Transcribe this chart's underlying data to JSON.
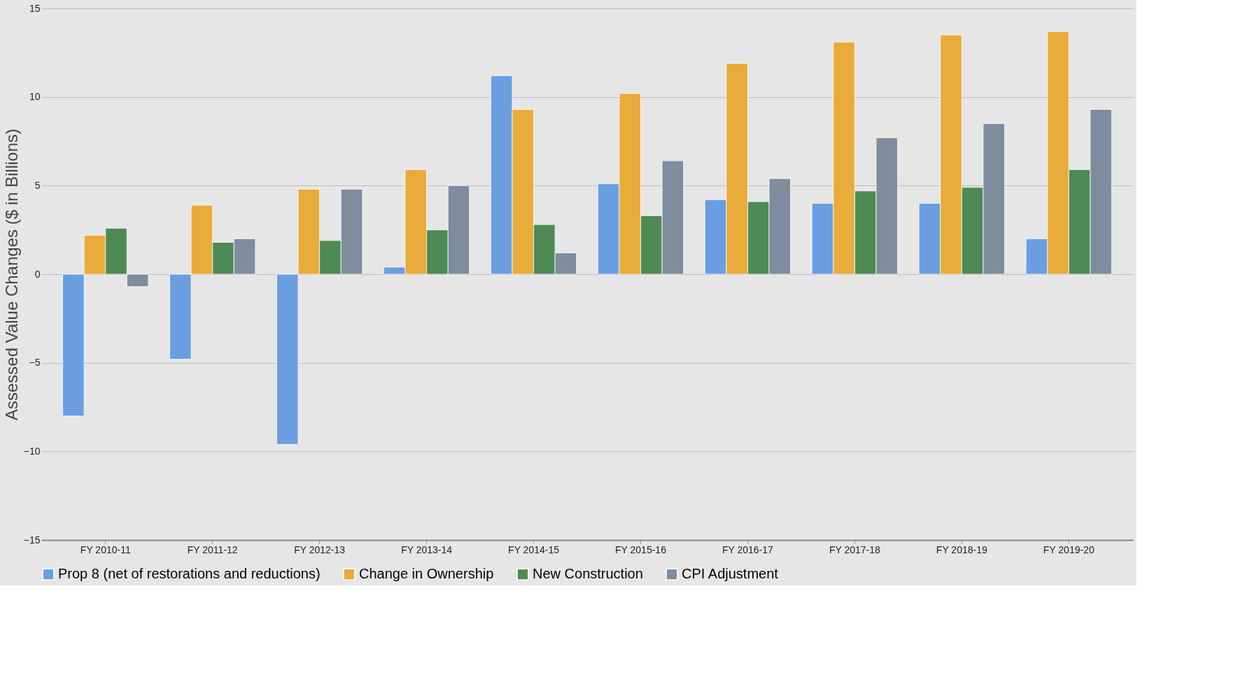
{
  "chart_data": {
    "type": "bar",
    "ylabel": "Assessed Value Changes ($ in Billions)",
    "categories": [
      "FY 2010-11",
      "FY 2011-12",
      "FY 2012-13",
      "FY 2013-14",
      "FY 2014-15",
      "FY 2015-16",
      "FY 2016-17",
      "FY 2017-18",
      "FY 2018-19",
      "FY 2019-20"
    ],
    "series": [
      {
        "name": "Prop 8 (net of restorations and reductions)",
        "color": "#6a9ee0",
        "values": [
          -8.0,
          -4.8,
          -9.6,
          0.4,
          11.2,
          5.1,
          4.2,
          4.0,
          4.0,
          2.0
        ]
      },
      {
        "name": "Change in Ownership",
        "color": "#e9ab3a",
        "values": [
          2.2,
          3.9,
          4.8,
          5.9,
          9.3,
          10.2,
          11.9,
          13.1,
          13.5,
          13.7
        ]
      },
      {
        "name": "New Construction",
        "color": "#4e8a55",
        "values": [
          2.6,
          1.8,
          1.9,
          2.5,
          2.8,
          3.3,
          4.1,
          4.7,
          4.9,
          5.9
        ]
      },
      {
        "name": "CPI Adjustment",
        "color": "#7d8d9e",
        "values": [
          -0.7,
          2.0,
          4.8,
          5.0,
          1.2,
          6.4,
          5.4,
          7.7,
          8.5,
          9.3
        ]
      }
    ],
    "ylim": [
      -15,
      15
    ],
    "yticks": [
      -15,
      -10,
      -5,
      0,
      5,
      10,
      15
    ],
    "grid": "y",
    "legend": "bottom"
  }
}
